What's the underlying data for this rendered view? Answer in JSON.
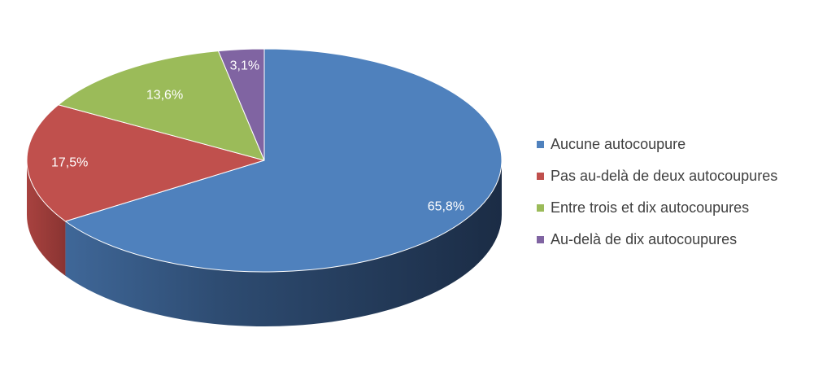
{
  "chart_data": {
    "type": "pie",
    "style": "3d",
    "title": "",
    "categories": [
      "Aucune autocoupure",
      "Pas au-delà de deux autocoupures",
      "Entre trois et dix autocoupures",
      "Au-delà de dix autocoupures"
    ],
    "values": [
      65.8,
      17.5,
      13.6,
      3.1
    ],
    "data_labels": [
      "65,8%",
      "17,5%",
      "13,6%",
      "3,1%"
    ],
    "colors": [
      "#4f81bd",
      "#c0504d",
      "#9bbb59",
      "#8064a2"
    ],
    "legend_position": "right"
  }
}
